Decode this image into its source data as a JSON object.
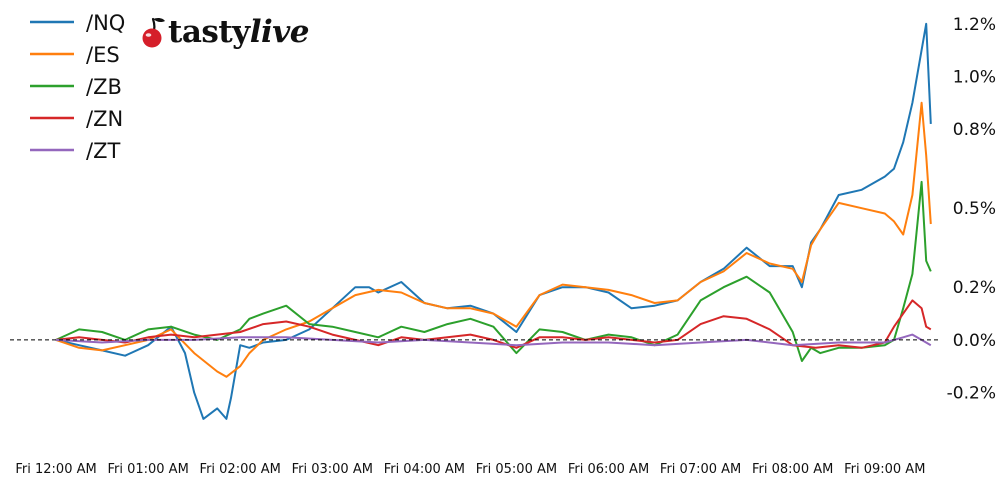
{
  "logo": {
    "brand_a": "tasty",
    "brand_b": "live"
  },
  "chart_data": {
    "type": "line",
    "x_tick_labels": [
      "Fri 12:00 AM",
      "Fri 01:00 AM",
      "Fri 02:00 AM",
      "Fri 03:00 AM",
      "Fri 04:00 AM",
      "Fri 05:00 AM",
      "Fri 06:00 AM",
      "Fri 07:00 AM",
      "Fri 08:00 AM",
      "Fri 09:00 AM"
    ],
    "x_unit": "hours since Fri 12:00 AM",
    "xlim": [
      -0.5,
      9.6
    ],
    "y_ticks": [
      -0.2,
      0.0,
      0.2,
      0.5,
      0.8,
      1.0,
      1.2
    ],
    "y_tick_labels": [
      "-0.2%",
      "0.0%",
      "0.2%",
      "0.5%",
      "0.8%",
      "1.0%",
      "1.2%"
    ],
    "ylim": [
      -0.38,
      1.26
    ],
    "y_axis_side": "right",
    "zero_line": "dashed black",
    "grid": false,
    "legend_position": "top-left",
    "series": [
      {
        "name": "/NQ",
        "color": "#1f77b4",
        "x": [
          0,
          0.25,
          0.5,
          0.75,
          1,
          1.25,
          1.4,
          1.5,
          1.6,
          1.75,
          1.85,
          1.9,
          2,
          2.1,
          2.25,
          2.5,
          2.75,
          3,
          3.25,
          3.4,
          3.5,
          3.75,
          4,
          4.25,
          4.5,
          4.75,
          5,
          5.25,
          5.5,
          5.75,
          6,
          6.25,
          6.5,
          6.75,
          7,
          7.25,
          7.5,
          7.75,
          8,
          8.1,
          8.2,
          8.3,
          8.5,
          8.75,
          9,
          9.1,
          9.2,
          9.3,
          9.4,
          9.45,
          9.5
        ],
        "y": [
          0.0,
          -0.02,
          -0.04,
          -0.06,
          -0.02,
          0.05,
          -0.05,
          -0.2,
          -0.3,
          -0.26,
          -0.3,
          -0.22,
          -0.02,
          -0.03,
          -0.01,
          0.0,
          0.04,
          0.12,
          0.2,
          0.2,
          0.18,
          0.22,
          0.14,
          0.12,
          0.13,
          0.1,
          0.03,
          0.17,
          0.2,
          0.2,
          0.18,
          0.12,
          0.13,
          0.15,
          0.22,
          0.27,
          0.35,
          0.28,
          0.28,
          0.2,
          0.37,
          0.42,
          0.55,
          0.57,
          0.62,
          0.65,
          0.75,
          0.9,
          1.1,
          1.2,
          0.82
        ]
      },
      {
        "name": "/ES",
        "color": "#ff7f0e",
        "x": [
          0,
          0.25,
          0.5,
          0.75,
          1,
          1.25,
          1.5,
          1.75,
          1.85,
          2,
          2.1,
          2.25,
          2.5,
          2.75,
          3,
          3.25,
          3.5,
          3.75,
          4,
          4.25,
          4.5,
          4.75,
          5,
          5.25,
          5.5,
          5.75,
          6,
          6.25,
          6.5,
          6.75,
          7,
          7.25,
          7.5,
          7.75,
          8,
          8.1,
          8.2,
          8.3,
          8.5,
          8.75,
          9,
          9.1,
          9.2,
          9.3,
          9.4,
          9.45,
          9.5
        ],
        "y": [
          0.0,
          -0.03,
          -0.04,
          -0.02,
          0.0,
          0.04,
          -0.05,
          -0.12,
          -0.14,
          -0.1,
          -0.05,
          0.0,
          0.04,
          0.07,
          0.12,
          0.17,
          0.19,
          0.18,
          0.14,
          0.12,
          0.12,
          0.1,
          0.05,
          0.17,
          0.21,
          0.2,
          0.19,
          0.17,
          0.14,
          0.15,
          0.22,
          0.26,
          0.33,
          0.29,
          0.27,
          0.22,
          0.36,
          0.42,
          0.52,
          0.5,
          0.48,
          0.45,
          0.4,
          0.55,
          0.9,
          0.7,
          0.44
        ]
      },
      {
        "name": "/ZB",
        "color": "#2ca02c",
        "x": [
          0,
          0.25,
          0.5,
          0.75,
          1,
          1.25,
          1.5,
          1.75,
          2,
          2.1,
          2.25,
          2.5,
          2.75,
          3,
          3.25,
          3.5,
          3.75,
          4,
          4.25,
          4.5,
          4.75,
          5,
          5.25,
          5.5,
          5.75,
          6,
          6.25,
          6.5,
          6.75,
          7,
          7.25,
          7.5,
          7.75,
          8,
          8.1,
          8.2,
          8.3,
          8.5,
          8.75,
          9,
          9.1,
          9.2,
          9.3,
          9.4,
          9.45,
          9.5
        ],
        "y": [
          0.0,
          0.04,
          0.03,
          0.0,
          0.04,
          0.05,
          0.02,
          0.0,
          0.04,
          0.08,
          0.1,
          0.13,
          0.06,
          0.05,
          0.03,
          0.01,
          0.05,
          0.03,
          0.06,
          0.08,
          0.05,
          -0.05,
          0.04,
          0.03,
          0.0,
          0.02,
          0.01,
          -0.02,
          0.02,
          0.15,
          0.2,
          0.24,
          0.18,
          0.03,
          -0.08,
          -0.03,
          -0.05,
          -0.03,
          -0.03,
          -0.02,
          0.0,
          0.12,
          0.25,
          0.6,
          0.3,
          0.26
        ]
      },
      {
        "name": "/ZN",
        "color": "#d62728",
        "x": [
          0,
          0.25,
          0.5,
          0.75,
          1,
          1.25,
          1.5,
          1.75,
          2,
          2.25,
          2.5,
          2.75,
          3,
          3.25,
          3.5,
          3.75,
          4,
          4.25,
          4.5,
          4.75,
          5,
          5.25,
          5.5,
          5.75,
          6,
          6.25,
          6.5,
          6.75,
          7,
          7.25,
          7.5,
          7.75,
          8,
          8.25,
          8.5,
          8.75,
          9,
          9.1,
          9.2,
          9.3,
          9.4,
          9.45,
          9.5
        ],
        "y": [
          0.0,
          0.01,
          0.0,
          -0.01,
          0.01,
          0.02,
          0.01,
          0.02,
          0.03,
          0.06,
          0.07,
          0.05,
          0.02,
          0.0,
          -0.02,
          0.01,
          0.0,
          0.01,
          0.02,
          0.0,
          -0.03,
          0.01,
          0.01,
          0.0,
          0.01,
          0.0,
          -0.01,
          0.0,
          0.06,
          0.09,
          0.08,
          0.04,
          -0.02,
          -0.03,
          -0.02,
          -0.03,
          -0.01,
          0.05,
          0.1,
          0.15,
          0.12,
          0.05,
          0.04
        ]
      },
      {
        "name": "/ZT",
        "color": "#9467bd",
        "x": [
          0,
          0.5,
          1,
          1.5,
          2,
          2.5,
          3,
          3.5,
          4,
          4.5,
          5,
          5.5,
          6,
          6.5,
          7,
          7.5,
          8,
          8.5,
          9,
          9.2,
          9.3,
          9.4,
          9.5
        ],
        "y": [
          0.0,
          -0.01,
          0.0,
          0.0,
          0.01,
          0.01,
          0.0,
          -0.01,
          0.0,
          -0.01,
          -0.02,
          -0.01,
          -0.01,
          -0.02,
          -0.01,
          0.0,
          -0.02,
          -0.01,
          -0.01,
          0.01,
          0.02,
          0.0,
          -0.02
        ]
      }
    ]
  }
}
